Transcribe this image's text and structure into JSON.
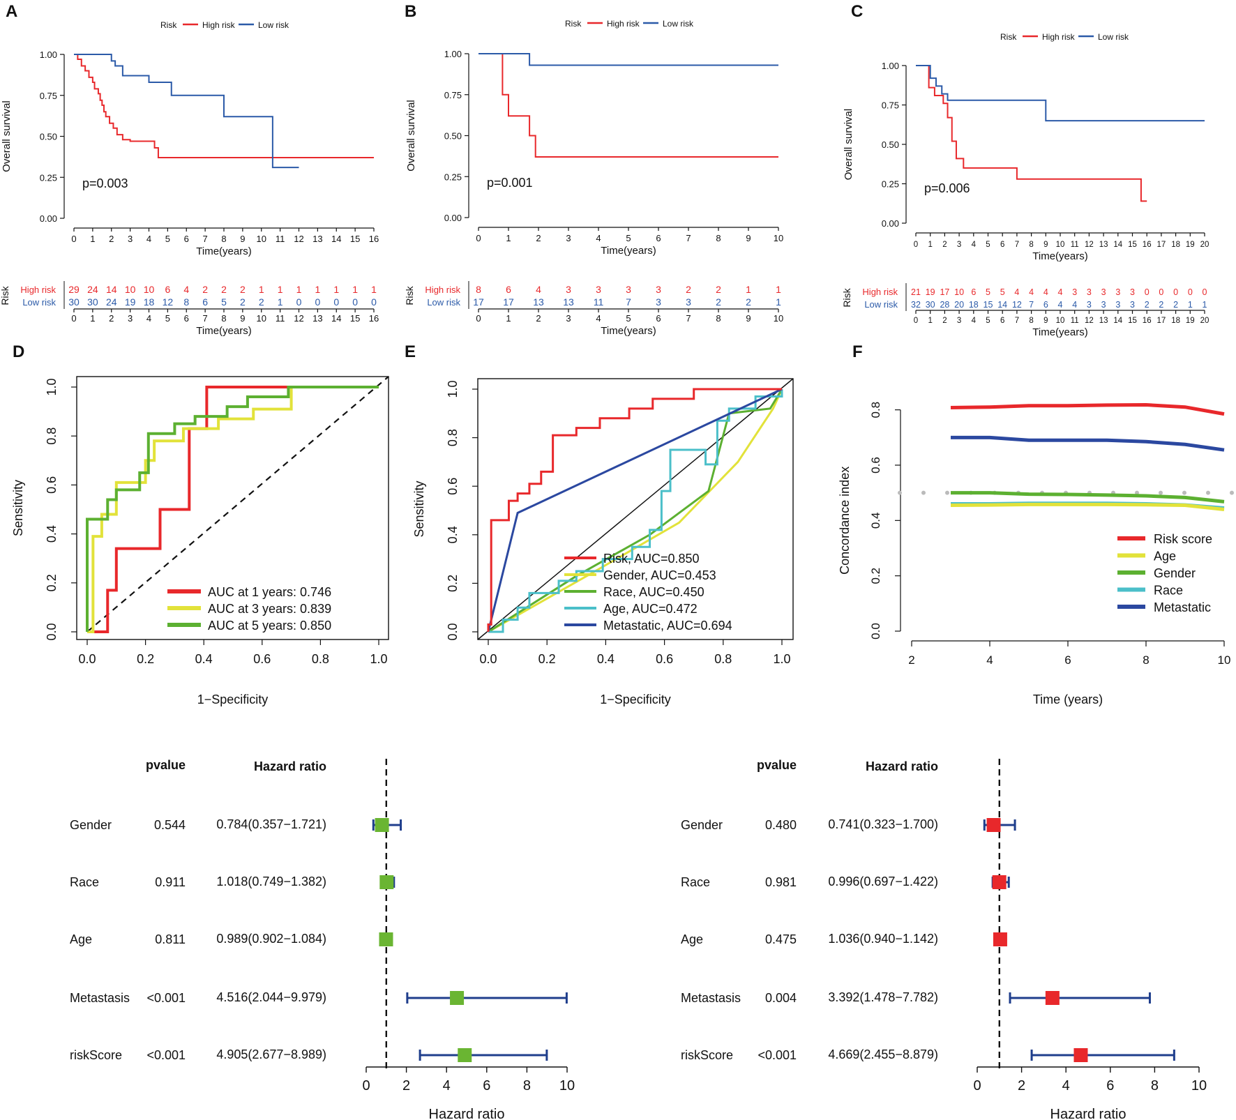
{
  "chart_data": [
    {
      "panel": "A",
      "type": "line",
      "subtype": "kaplan-meier",
      "legend_title": "Risk",
      "series": [
        {
          "name": "High risk",
          "color": "#e8282b",
          "x": [
            0,
            0.2,
            0.4,
            0.6,
            0.8,
            1.0,
            1.1,
            1.3,
            1.4,
            1.5,
            1.6,
            1.7,
            1.9,
            2.1,
            2.3,
            2.6,
            3.0,
            4.3,
            4.5,
            16.0
          ],
          "y": [
            1.0,
            0.97,
            0.93,
            0.9,
            0.86,
            0.83,
            0.79,
            0.76,
            0.72,
            0.69,
            0.65,
            0.62,
            0.58,
            0.55,
            0.51,
            0.48,
            0.47,
            0.43,
            0.37,
            0.37
          ]
        },
        {
          "name": "Low risk",
          "color": "#2b5aa8",
          "x": [
            0,
            2.0,
            2.2,
            2.6,
            3.0,
            4.0,
            5.2,
            8.0,
            10.6,
            12.0
          ],
          "y": [
            1.0,
            0.96,
            0.93,
            0.87,
            0.87,
            0.83,
            0.75,
            0.62,
            0.31,
            0.31
          ]
        }
      ],
      "p_value": "p=0.003",
      "xlabel": "Time(years)",
      "ylabel": "Overall survival",
      "xticks": [
        0,
        1,
        2,
        3,
        4,
        5,
        6,
        7,
        8,
        9,
        10,
        11,
        12,
        13,
        14,
        15,
        16
      ],
      "yticks": [
        "0.00",
        "0.25",
        "0.50",
        "0.75",
        "1.00"
      ],
      "risk_table": {
        "label": "Risk",
        "rows": [
          {
            "name": "High risk",
            "counts": [
              29,
              24,
              14,
              10,
              10,
              6,
              4,
              2,
              2,
              2,
              1,
              1,
              1,
              1,
              1,
              1,
              1
            ]
          },
          {
            "name": "Low risk",
            "counts": [
              30,
              30,
              24,
              19,
              18,
              12,
              8,
              6,
              5,
              2,
              2,
              1,
              0,
              0,
              0,
              0,
              0
            ]
          }
        ]
      }
    },
    {
      "panel": "B",
      "type": "line",
      "subtype": "kaplan-meier",
      "legend_title": "Risk",
      "series": [
        {
          "name": "High risk",
          "color": "#e8282b",
          "x": [
            0,
            0.7,
            0.8,
            1.0,
            1.7,
            1.9,
            10.0
          ],
          "y": [
            1.0,
            1.0,
            0.75,
            0.62,
            0.5,
            0.37,
            0.37
          ]
        },
        {
          "name": "Low risk",
          "color": "#2b5aa8",
          "x": [
            0,
            1.7,
            10.0
          ],
          "y": [
            1.0,
            0.93,
            0.93
          ]
        }
      ],
      "p_value": "p=0.001",
      "xlabel": "Time(years)",
      "ylabel": "Overall survival",
      "xticks": [
        0,
        1,
        2,
        3,
        4,
        5,
        6,
        7,
        8,
        9,
        10
      ],
      "yticks": [
        "0.00",
        "0.25",
        "0.50",
        "0.75",
        "1.00"
      ],
      "risk_table": {
        "label": "Risk",
        "rows": [
          {
            "name": "High risk",
            "counts": [
              8,
              6,
              4,
              3,
              3,
              3,
              3,
              2,
              2,
              1,
              1
            ]
          },
          {
            "name": "Low risk",
            "counts": [
              17,
              17,
              13,
              13,
              11,
              7,
              3,
              3,
              2,
              2,
              1
            ]
          }
        ]
      }
    },
    {
      "panel": "C",
      "type": "line",
      "subtype": "kaplan-meier",
      "legend_title": "Risk",
      "series": [
        {
          "name": "High risk",
          "color": "#e8282b",
          "x": [
            0,
            0.9,
            1.3,
            1.9,
            2.2,
            2.5,
            2.8,
            3.3,
            3.7,
            7.0,
            15.6,
            16.0
          ],
          "y": [
            1.0,
            0.86,
            0.81,
            0.76,
            0.67,
            0.52,
            0.41,
            0.35,
            0.35,
            0.28,
            0.14,
            0.14
          ]
        },
        {
          "name": "Low risk",
          "color": "#2b5aa8",
          "x": [
            0,
            1.0,
            1.4,
            1.8,
            2.2,
            9.0,
            20.0
          ],
          "y": [
            1.0,
            0.92,
            0.87,
            0.82,
            0.78,
            0.65,
            0.65
          ]
        }
      ],
      "p_value": "p=0.006",
      "xlabel": "Time(years)",
      "ylabel": "Overall survival",
      "xticks": [
        0,
        1,
        2,
        3,
        4,
        5,
        6,
        7,
        8,
        9,
        10,
        11,
        12,
        13,
        14,
        15,
        16,
        17,
        18,
        19,
        20
      ],
      "yticks": [
        "0.00",
        "0.25",
        "0.50",
        "0.75",
        "1.00"
      ],
      "risk_table": {
        "label": "Risk",
        "rows": [
          {
            "name": "High risk",
            "counts": [
              21,
              19,
              17,
              10,
              6,
              5,
              5,
              4,
              4,
              4,
              4,
              3,
              3,
              3,
              3,
              3,
              0,
              0,
              0,
              0,
              0
            ]
          },
          {
            "name": "Low risk",
            "counts": [
              32,
              30,
              28,
              20,
              18,
              15,
              14,
              12,
              7,
              6,
              4,
              4,
              3,
              3,
              3,
              3,
              2,
              2,
              2,
              1,
              1
            ]
          }
        ]
      }
    },
    {
      "panel": "D",
      "type": "line",
      "subtype": "roc",
      "xlabel": "1−Specificity",
      "ylabel": "Sensitivity",
      "xticks": [
        "0.0",
        "0.2",
        "0.4",
        "0.6",
        "0.8",
        "1.0"
      ],
      "yticks": [
        "0.0",
        "0.2",
        "0.4",
        "0.6",
        "0.8",
        "1.0"
      ],
      "series": [
        {
          "name": "AUC at 1 years: 0.746",
          "color": "#e8282b",
          "x": [
            0,
            0.07,
            0.07,
            0.1,
            0.1,
            0.25,
            0.25,
            0.35,
            0.35,
            0.41,
            0.41,
            1.0
          ],
          "y": [
            0,
            0,
            0.17,
            0.17,
            0.34,
            0.34,
            0.5,
            0.5,
            0.83,
            0.83,
            1.0,
            1.0
          ]
        },
        {
          "name": "AUC at 3 years: 0.839",
          "color": "#e2e23a",
          "x": [
            0,
            0.02,
            0.02,
            0.05,
            0.05,
            0.1,
            0.1,
            0.2,
            0.2,
            0.23,
            0.23,
            0.33,
            0.33,
            0.45,
            0.45,
            0.57,
            0.57,
            0.7,
            0.7,
            1.0
          ],
          "y": [
            0,
            0,
            0.39,
            0.39,
            0.48,
            0.48,
            0.61,
            0.61,
            0.7,
            0.7,
            0.78,
            0.78,
            0.83,
            0.83,
            0.87,
            0.87,
            0.91,
            0.91,
            1.0,
            1.0
          ]
        },
        {
          "name": "AUC at 5 years: 0.850",
          "color": "#5cb031",
          "x": [
            0,
            0.0,
            0.07,
            0.07,
            0.1,
            0.1,
            0.18,
            0.18,
            0.21,
            0.21,
            0.3,
            0.3,
            0.37,
            0.37,
            0.48,
            0.48,
            0.55,
            0.55,
            0.69,
            0.69,
            1.0
          ],
          "y": [
            0,
            0.46,
            0.46,
            0.54,
            0.54,
            0.58,
            0.58,
            0.65,
            0.65,
            0.81,
            0.81,
            0.85,
            0.85,
            0.88,
            0.88,
            0.92,
            0.92,
            0.96,
            0.96,
            1.0,
            1.0
          ]
        }
      ]
    },
    {
      "panel": "E",
      "type": "line",
      "subtype": "roc",
      "xlabel": "1−Specificity",
      "ylabel": "Sensitivity",
      "xticks": [
        "0.0",
        "0.2",
        "0.4",
        "0.6",
        "0.8",
        "1.0"
      ],
      "yticks": [
        "0.0",
        "0.2",
        "0.4",
        "0.6",
        "0.8",
        "1.0"
      ],
      "series": [
        {
          "name": "Risk, AUC=0.850",
          "color": "#e8282b",
          "x": [
            0,
            0,
            0.01,
            0.01,
            0.07,
            0.07,
            0.1,
            0.1,
            0.14,
            0.14,
            0.18,
            0.18,
            0.22,
            0.22,
            0.3,
            0.3,
            0.38,
            0.38,
            0.48,
            0.48,
            0.56,
            0.56,
            0.7,
            0.7,
            1.0
          ],
          "y": [
            0,
            0.03,
            0.03,
            0.46,
            0.46,
            0.54,
            0.54,
            0.57,
            0.57,
            0.61,
            0.61,
            0.66,
            0.66,
            0.81,
            0.81,
            0.84,
            0.84,
            0.88,
            0.88,
            0.92,
            0.92,
            0.96,
            0.96,
            1.0,
            1.0
          ]
        },
        {
          "name": "Gender, AUC=0.453",
          "color": "#e2e23a",
          "x": [
            0,
            0.35,
            0.65,
            0.85,
            0.97,
            1.0
          ],
          "y": [
            0,
            0.24,
            0.45,
            0.7,
            0.92,
            1.0
          ]
        },
        {
          "name": "Race, AUC=0.450",
          "color": "#5cb031",
          "x": [
            0,
            0.3,
            0.55,
            0.75,
            0.82,
            0.96,
            1.0
          ],
          "y": [
            0,
            0.23,
            0.4,
            0.58,
            0.9,
            0.92,
            1.0
          ]
        },
        {
          "name": "Age, AUC=0.472",
          "color": "#4bbfc9",
          "x": [
            0,
            0.05,
            0.05,
            0.1,
            0.1,
            0.14,
            0.14,
            0.24,
            0.24,
            0.3,
            0.3,
            0.39,
            0.39,
            0.49,
            0.49,
            0.55,
            0.55,
            0.59,
            0.59,
            0.62,
            0.62,
            0.74,
            0.74,
            0.78,
            0.78,
            0.82,
            0.82,
            0.91,
            0.91,
            1.0,
            1.0
          ],
          "y": [
            0,
            0,
            0.05,
            0.05,
            0.1,
            0.1,
            0.16,
            0.16,
            0.21,
            0.21,
            0.25,
            0.25,
            0.3,
            0.3,
            0.35,
            0.35,
            0.42,
            0.42,
            0.58,
            0.58,
            0.75,
            0.75,
            0.69,
            0.69,
            0.87,
            0.87,
            0.92,
            0.92,
            0.97,
            0.97,
            1.0
          ]
        },
        {
          "name": "Metastatic, AUC=0.694",
          "color": "#2b48a0",
          "x": [
            0,
            0.1,
            1.0
          ],
          "y": [
            0,
            0.49,
            1.0
          ]
        }
      ]
    },
    {
      "panel": "F",
      "type": "line",
      "subtype": "concordance",
      "xlabel": "Time (years)",
      "ylabel": "Concordance index",
      "xticks": [
        "2",
        "4",
        "6",
        "8",
        "10"
      ],
      "yticks": [
        "0.0",
        "0.2",
        "0.4",
        "0.6",
        "0.8"
      ],
      "reference_line": 0.5,
      "series": [
        {
          "name": "Risk score",
          "color": "#e8282b",
          "x": [
            3,
            4,
            5,
            6,
            7,
            8,
            9,
            10
          ],
          "y": [
            0.808,
            0.81,
            0.815,
            0.815,
            0.817,
            0.818,
            0.81,
            0.785
          ]
        },
        {
          "name": "Age",
          "color": "#e2e23a",
          "x": [
            3,
            4,
            5,
            6,
            7,
            8,
            9,
            10
          ],
          "y": [
            0.455,
            0.456,
            0.458,
            0.458,
            0.458,
            0.457,
            0.455,
            0.44
          ]
        },
        {
          "name": "Gender",
          "color": "#5cb031",
          "x": [
            3,
            4,
            5,
            6,
            7,
            8,
            9,
            10
          ],
          "y": [
            0.5,
            0.5,
            0.495,
            0.494,
            0.492,
            0.489,
            0.483,
            0.468
          ]
        },
        {
          "name": "Race",
          "color": "#4bbfc9",
          "x": [
            3,
            4,
            5,
            6,
            7,
            8,
            9,
            10
          ],
          "y": [
            0.46,
            0.46,
            0.462,
            0.462,
            0.462,
            0.46,
            0.456,
            0.445
          ]
        },
        {
          "name": "Metastatic",
          "color": "#2b48a0",
          "x": [
            3,
            4,
            5,
            6,
            7,
            8,
            9,
            10
          ],
          "y": [
            0.7,
            0.7,
            0.69,
            0.69,
            0.69,
            0.685,
            0.675,
            0.655
          ]
        }
      ]
    },
    {
      "panel": "forest-left",
      "type": "forest",
      "col_pvalue": "pvalue",
      "col_hr": "Hazard ratio",
      "xlabel": "Hazard ratio",
      "xticks": [
        "0",
        "2",
        "4",
        "6",
        "8",
        "10"
      ],
      "color": "#6ab532",
      "rows": [
        {
          "name": "Gender",
          "pvalue": "0.544",
          "hr_text": "0.784(0.357−1.721)",
          "hr": 0.784,
          "lo": 0.357,
          "hi": 1.721
        },
        {
          "name": "Race",
          "pvalue": "0.911",
          "hr_text": "1.018(0.749−1.382)",
          "hr": 1.018,
          "lo": 0.749,
          "hi": 1.382
        },
        {
          "name": "Age",
          "pvalue": "0.811",
          "hr_text": "0.989(0.902−1.084)",
          "hr": 0.989,
          "lo": 0.902,
          "hi": 1.084
        },
        {
          "name": "Metastasis",
          "pvalue": "<0.001",
          "hr_text": "4.516(2.044−9.979)",
          "hr": 4.516,
          "lo": 2.044,
          "hi": 9.979
        },
        {
          "name": "riskScore",
          "pvalue": "<0.001",
          "hr_text": "4.905(2.677−8.989)",
          "hr": 4.905,
          "lo": 2.677,
          "hi": 8.989
        }
      ]
    },
    {
      "panel": "forest-right",
      "type": "forest",
      "col_pvalue": "pvalue",
      "col_hr": "Hazard ratio",
      "xlabel": "Hazard ratio",
      "xticks": [
        "0",
        "2",
        "4",
        "6",
        "8",
        "10"
      ],
      "color": "#e8282b",
      "rows": [
        {
          "name": "Gender",
          "pvalue": "0.480",
          "hr_text": "0.741(0.323−1.700)",
          "hr": 0.741,
          "lo": 0.323,
          "hi": 1.7
        },
        {
          "name": "Race",
          "pvalue": "0.981",
          "hr_text": "0.996(0.697−1.422)",
          "hr": 0.996,
          "lo": 0.697,
          "hi": 1.422
        },
        {
          "name": "Age",
          "pvalue": "0.475",
          "hr_text": "1.036(0.940−1.142)",
          "hr": 1.036,
          "lo": 0.94,
          "hi": 1.142
        },
        {
          "name": "Metastasis",
          "pvalue": "0.004",
          "hr_text": "3.392(1.478−7.782)",
          "hr": 3.392,
          "lo": 1.478,
          "hi": 7.782
        },
        {
          "name": "riskScore",
          "pvalue": "<0.001",
          "hr_text": "4.669(2.455−8.879)",
          "hr": 4.669,
          "lo": 2.455,
          "hi": 8.879
        }
      ]
    }
  ]
}
